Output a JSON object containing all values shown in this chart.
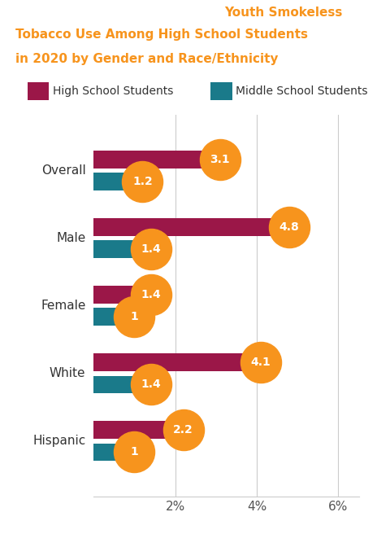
{
  "title_bg_color": "#3d3d3d",
  "title_text_color1": "#ffffff",
  "title_text_color2": "#f7941d",
  "legend_hs_color": "#9b1748",
  "legend_ms_color": "#1a7a8a",
  "legend_hs_label": "High School Students",
  "legend_ms_label": "Middle School Students",
  "categories": [
    "Overall",
    "Male",
    "Female",
    "White",
    "Hispanic"
  ],
  "hs_values": [
    3.1,
    4.8,
    1.4,
    4.1,
    2.2
  ],
  "ms_values": [
    1.2,
    1.4,
    1.0,
    1.4,
    1.0
  ],
  "hs_color": "#9b1748",
  "ms_color": "#1a7a8a",
  "bubble_color": "#f7941d",
  "bubble_text_color": "#ffffff",
  "xlim": [
    0,
    6.5
  ],
  "xticks": [
    0,
    2,
    4,
    6
  ],
  "xtick_labels": [
    "",
    "2%",
    "4%",
    "6%"
  ],
  "axis_label_color": "#555555",
  "category_label_color": "#333333",
  "background_color": "#ffffff",
  "bubble_fontsize": 10,
  "cat_fontsize": 11,
  "legend_fontsize": 10,
  "title_fontsize": 11
}
